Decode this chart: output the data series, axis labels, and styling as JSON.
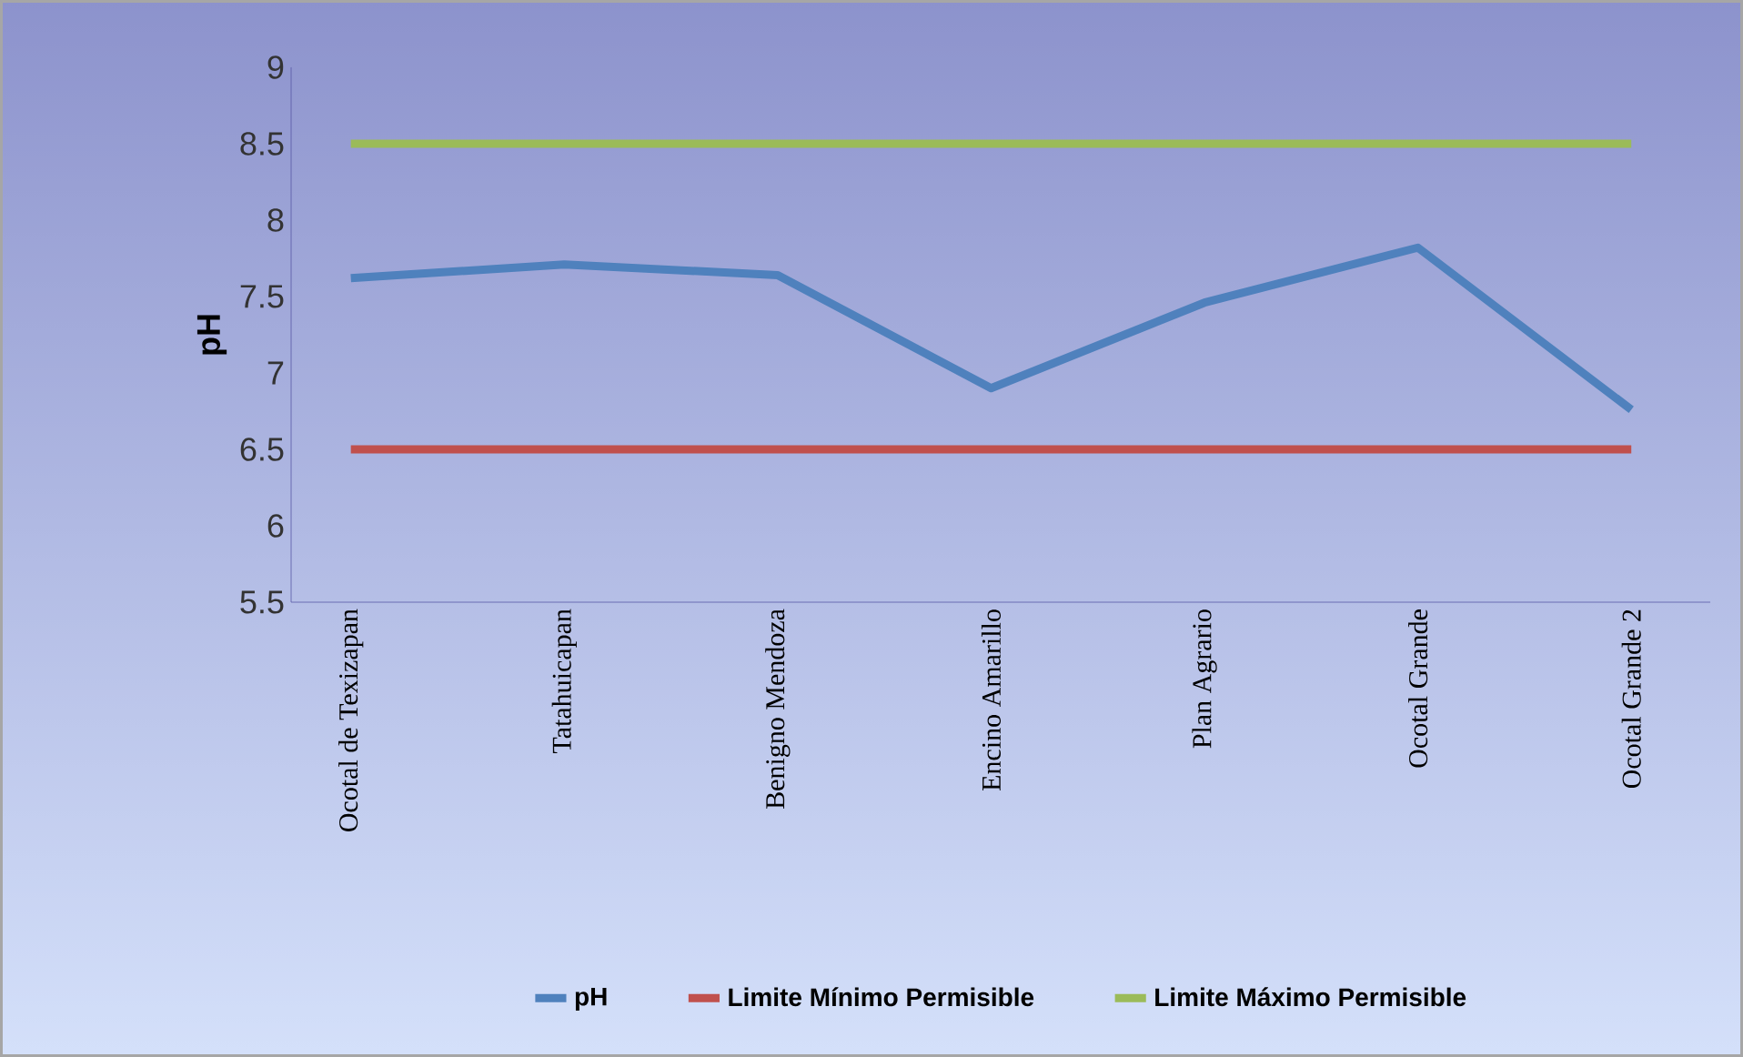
{
  "chart_data": {
    "type": "line",
    "ylabel": "**pH**",
    "categories": [
      "Ocotal de Texizapan",
      "Tatahuicapan",
      "Benigno Mendoza",
      "Encino Amarillo",
      "Plan Agrario",
      "Ocotal Grande",
      "Ocotal Grande 2"
    ],
    "series": [
      {
        "name": "pH",
        "color": "#4f81bd",
        "values": [
          7.62,
          7.71,
          7.64,
          6.9,
          7.46,
          7.82,
          6.76
        ]
      },
      {
        "name": "Limite Mínimo Permisible",
        "color": "#c0504d",
        "values": [
          6.5,
          6.5,
          6.5,
          6.5,
          6.5,
          6.5,
          6.5
        ]
      },
      {
        "name": "Limite Máximo Permisible",
        "color": "#9bbb59",
        "values": [
          8.5,
          8.5,
          8.5,
          8.5,
          8.5,
          8.5,
          8.5
        ]
      }
    ],
    "ylim": [
      5.5,
      9
    ],
    "yticks": [
      5.5,
      6,
      6.5,
      7,
      7.5,
      8,
      8.5,
      9
    ],
    "grid": false,
    "legend": "bottom",
    "line_style": "solid",
    "marker": "none"
  }
}
